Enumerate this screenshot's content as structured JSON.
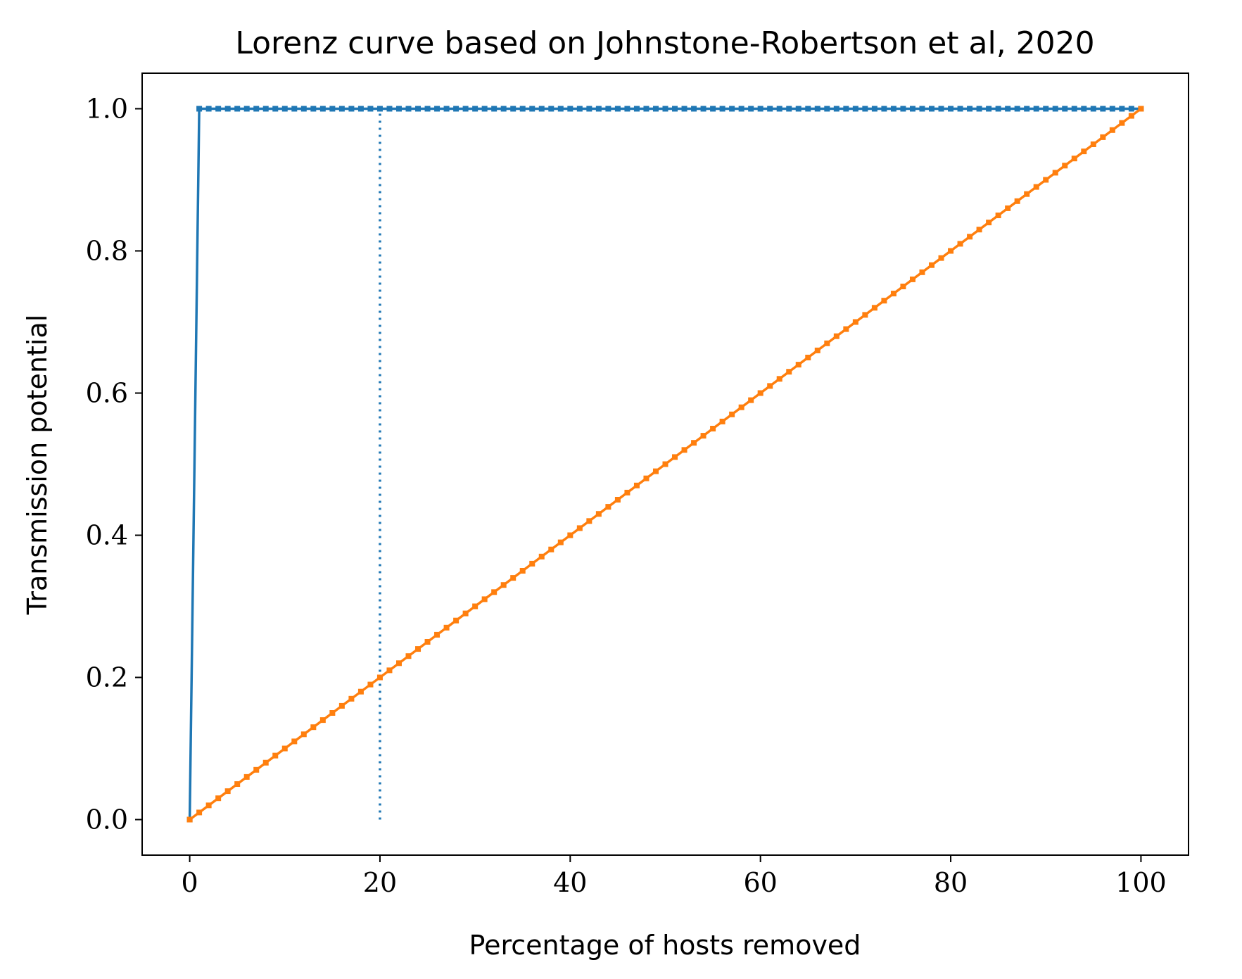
{
  "chart_data": {
    "type": "line",
    "title": "Lorenz curve based on Johnstone-Robertson et al, 2020",
    "xlabel": "Percentage of hosts removed",
    "ylabel": "Transmission potential",
    "xlim": [
      -5,
      105
    ],
    "ylim": [
      -0.05,
      1.05
    ],
    "xticks": [
      0,
      20,
      40,
      60,
      80,
      100
    ],
    "xtick_labels": [
      "0",
      "20",
      "40",
      "60",
      "80",
      "100"
    ],
    "yticks": [
      0.0,
      0.2,
      0.4,
      0.6,
      0.8,
      1.0
    ],
    "ytick_labels": [
      "0.0",
      "0.2",
      "0.4",
      "0.6",
      "0.8",
      "1.0"
    ],
    "grid": false,
    "series": [
      {
        "color": "#1f77b4",
        "style": "solid line with square markers",
        "x": [
          0,
          1,
          100
        ],
        "y": [
          0.0,
          1.0,
          1.0
        ],
        "marker_step": 1
      },
      {
        "color": "#ff7f0e",
        "style": "solid line with square markers",
        "x": [
          0,
          100
        ],
        "y": [
          0.0,
          1.0
        ],
        "marker_step": 1
      }
    ],
    "annotations": [
      {
        "type": "vline",
        "color": "#1f77b4",
        "style": "dotted",
        "x": 20,
        "y": [
          0.0,
          1.0
        ]
      }
    ]
  }
}
